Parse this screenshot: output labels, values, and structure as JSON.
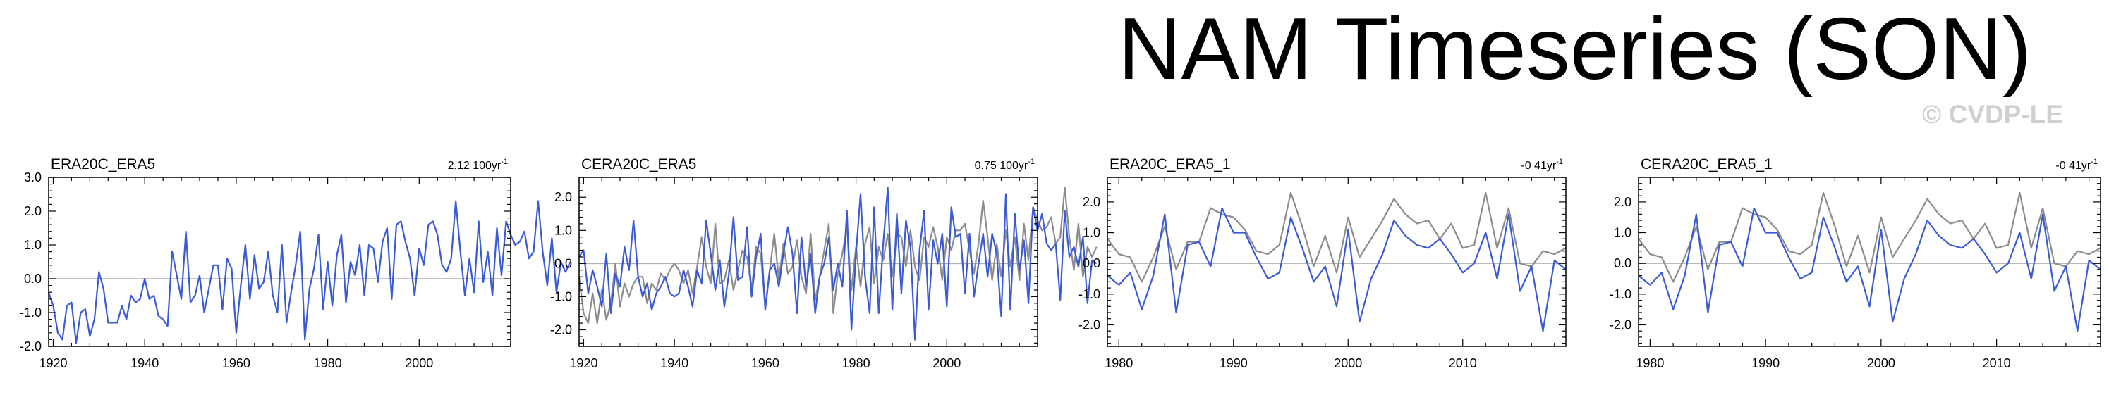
{
  "page": {
    "title": "NAM Timeseries (SON)",
    "watermark": "© CVDP-LE"
  },
  "colors": {
    "series_main": "#3b5bd6",
    "series_ref": "#8c8c8c",
    "zero_line": "#b0b0b0",
    "axis": "#000000"
  },
  "chart_data": [
    {
      "type": "line",
      "title": "ERA20C_ERA5",
      "trend_label": "2.12 100yr",
      "trend_sup": "-1",
      "xlim": [
        1919,
        2020
      ],
      "ylim": [
        -2.0,
        3.0
      ],
      "xticks": [
        1920,
        1940,
        1960,
        1980,
        2000
      ],
      "yticks": [
        -2.0,
        -1.0,
        0.0,
        1.0,
        2.0,
        3.0
      ],
      "ytick_labels": [
        "-2.0",
        "-1.0",
        "0.0",
        "1.0",
        "2.0",
        "3.0"
      ],
      "series": [
        {
          "name": "ERA20C_ERA5",
          "color": "#3b5bd6",
          "x_start": 1919,
          "values": [
            -0.4,
            -0.8,
            -1.6,
            -1.8,
            -0.8,
            -0.7,
            -1.9,
            -1.0,
            -0.9,
            -1.7,
            -1.2,
            0.2,
            -0.3,
            -1.3,
            -1.3,
            -1.3,
            -0.8,
            -1.2,
            -0.5,
            -0.7,
            -0.6,
            0.0,
            -0.6,
            -0.5,
            -1.1,
            -1.2,
            -1.4,
            0.8,
            0.1,
            -0.6,
            1.4,
            -0.7,
            -0.5,
            0.1,
            -1.0,
            -0.3,
            0.4,
            0.4,
            -0.9,
            0.6,
            0.3,
            -1.6,
            -0.2,
            1.0,
            -0.6,
            0.7,
            -0.3,
            -0.1,
            0.8,
            -0.5,
            -1.0,
            1.0,
            -1.3,
            -0.4,
            0.4,
            1.4,
            -1.8,
            -0.3,
            0.3,
            1.3,
            -0.9,
            0.5,
            -0.8,
            0.7,
            1.3,
            -0.7,
            0.5,
            0.1,
            1.0,
            -0.5,
            1.0,
            0.9,
            -0.1,
            1.1,
            1.5,
            -0.6,
            1.6,
            1.7,
            1.1,
            0.6,
            -0.5,
            0.9,
            0.4,
            1.6,
            1.7,
            1.3,
            0.4,
            0.2,
            0.6,
            2.3,
            0.8,
            -0.5,
            0.6,
            -0.4,
            1.7,
            -0.1,
            0.8,
            -0.5,
            1.5,
            0.1,
            1.7,
            1.3,
            1.0,
            1.1,
            1.4,
            0.6,
            0.8,
            2.3,
            0.8,
            -0.2,
            1.2,
            -0.4,
            0.5,
            0.2,
            0.5
          ]
        }
      ]
    },
    {
      "type": "line",
      "title": "CERA20C_ERA5",
      "trend_label": "0.75 100yr",
      "trend_sup": "-1",
      "xlim": [
        1919,
        2020
      ],
      "ylim": [
        -2.5,
        2.6
      ],
      "xticks": [
        1920,
        1940,
        1960,
        1980,
        2000
      ],
      "yticks": [
        -2.0,
        -1.0,
        0.0,
        1.0,
        2.0
      ],
      "ytick_labels": [
        "-2.0",
        "-1.0",
        "0.0",
        "1.0",
        "2.0"
      ],
      "series": [
        {
          "name": "ERA20C_ERA5",
          "color": "#8c8c8c",
          "x_start": 1919,
          "values": [
            -0.4,
            -1.5,
            -1.8,
            -0.9,
            -1.8,
            -0.8,
            -1.7,
            -1.2,
            0.0,
            -1.3,
            -0.6,
            -1.0,
            -0.6,
            -0.4,
            -0.4,
            -1.2,
            -0.6,
            -0.8,
            -0.3,
            -0.5,
            -0.2,
            0.0,
            -0.2,
            -0.6,
            -0.2,
            -0.9,
            -0.1,
            0.8,
            -0.1,
            -0.6,
            1.2,
            -0.6,
            -0.5,
            0.1,
            -0.8,
            -0.2,
            0.4,
            0.2,
            -0.8,
            0.5,
            0.3,
            -1.3,
            -0.2,
            0.9,
            -0.5,
            0.6,
            -0.3,
            -0.1,
            0.7,
            -0.4,
            -0.9,
            0.9,
            -1.1,
            -0.4,
            0.4,
            1.2,
            -1.5,
            -0.3,
            0.3,
            1.1,
            -0.8,
            0.5,
            -0.7,
            0.6,
            1.1,
            -0.6,
            0.5,
            0.1,
            0.9,
            -0.4,
            0.9,
            0.8,
            -0.1,
            1.0,
            -0.1,
            -0.5,
            0.8,
            0.5,
            1.1,
            0.5,
            -0.5,
            0.8,
            0.4,
            1.0,
            1.0,
            1.2,
            0.4,
            -0.3,
            0.6,
            1.9,
            0.8,
            -0.5,
            0.6,
            -0.4,
            1.0,
            -0.1,
            0.8,
            -0.5,
            1.2,
            0.1,
            1.7,
            1.3,
            1.0,
            1.1,
            1.4,
            0.6,
            0.8,
            2.3,
            0.8,
            -0.2,
            1.2,
            -0.4,
            0.5,
            0.2,
            0.5
          ]
        },
        {
          "name": "CERA20C_ERA5",
          "color": "#3b5bd6",
          "x_start": 1919,
          "values": [
            0.2,
            0.4,
            -0.9,
            -0.2,
            -0.7,
            -1.3,
            0.3,
            -1.5,
            -0.3,
            -0.7,
            0.5,
            -0.2,
            1.3,
            -0.4,
            -1.0,
            -0.6,
            -1.4,
            -0.9,
            -0.7,
            -0.4,
            -0.9,
            -1.0,
            -0.9,
            -0.2,
            -0.7,
            -1.3,
            -0.2,
            -0.6,
            1.3,
            0.3,
            -0.8,
            0.1,
            -1.3,
            -0.3,
            1.4,
            -0.5,
            -0.4,
            1.1,
            -1.0,
            0.2,
            0.9,
            -1.4,
            -0.2,
            0.0,
            -0.7,
            0.3,
            1.1,
            0.3,
            -1.5,
            0.8,
            -0.7,
            0.3,
            -1.5,
            -0.4,
            0.0,
            0.8,
            -0.8,
            0.0,
            -0.7,
            1.6,
            -2.0,
            0.3,
            2.1,
            -0.4,
            -1.5,
            1.7,
            -1.5,
            0.6,
            2.3,
            -1.4,
            1.5,
            -0.9,
            1.3,
            0.5,
            -2.3,
            0.4,
            1.6,
            -1.4,
            0.7,
            0.0,
            0.9,
            -1.3,
            1.7,
            0.8,
            0.9,
            -0.9,
            0.9,
            -1.0,
            0.0,
            0.9,
            -0.4,
            0.9,
            0.3,
            -1.6,
            2.1,
            -1.4,
            1.5,
            -0.2,
            0.7,
            -1.2,
            1.7,
            1.0,
            1.5,
            0.6,
            0.4,
            0.6,
            -1.1,
            1.6,
            0.2,
            0.5,
            -0.1,
            0.8,
            -1.2,
            0.1,
            0.0
          ]
        }
      ]
    },
    {
      "type": "line",
      "title": "ERA20C_ERA5_1",
      "trend_label": "-0 41yr",
      "trend_sup": "-1",
      "xlim": [
        1979,
        2019
      ],
      "ylim": [
        -2.7,
        2.8
      ],
      "xticks": [
        1980,
        1990,
        2000,
        2010
      ],
      "yticks": [
        -2.0,
        -1.0,
        0.0,
        1.0,
        2.0
      ],
      "ytick_labels": [
        "-2.0",
        "-1.0",
        "0.0",
        "1.0",
        "2.0"
      ],
      "series": [
        {
          "name": "ERA20C_ERA5",
          "color": "#8c8c8c",
          "x_start": 1979,
          "values": [
            0.8,
            0.3,
            0.2,
            -0.6,
            0.2,
            1.2,
            -0.2,
            0.7,
            0.7,
            1.8,
            1.6,
            1.5,
            1.1,
            0.4,
            0.3,
            0.6,
            2.3,
            1.2,
            -0.1,
            0.9,
            -0.3,
            1.5,
            0.2,
            0.8,
            1.4,
            2.1,
            1.6,
            1.3,
            1.4,
            0.8,
            1.3,
            0.5,
            0.6,
            2.3,
            0.5,
            1.8,
            0.0,
            -0.1,
            0.4,
            0.3,
            0.5
          ]
        },
        {
          "name": "ERA20C_ERA5_1",
          "color": "#3b5bd6",
          "x_start": 1979,
          "values": [
            -0.4,
            -0.7,
            -0.3,
            -1.5,
            -0.4,
            1.6,
            -1.6,
            0.6,
            0.7,
            -0.1,
            1.8,
            1.0,
            1.0,
            0.2,
            -0.5,
            -0.3,
            1.5,
            0.5,
            -0.6,
            -0.1,
            -1.4,
            1.1,
            -1.9,
            -0.5,
            0.3,
            1.4,
            0.9,
            0.6,
            0.5,
            0.8,
            0.3,
            -0.3,
            0.0,
            1.0,
            -0.5,
            1.6,
            -0.9,
            -0.1,
            -2.2,
            0.1,
            -0.2
          ]
        }
      ]
    },
    {
      "type": "line",
      "title": "CERA20C_ERA5_1",
      "trend_label": "-0 41yr",
      "trend_sup": "-1",
      "xlim": [
        1979,
        2019
      ],
      "ylim": [
        -2.7,
        2.8
      ],
      "xticks": [
        1980,
        1990,
        2000,
        2010
      ],
      "yticks": [
        -2.0,
        -1.0,
        0.0,
        1.0,
        2.0
      ],
      "ytick_labels": [
        "-2.0",
        "-1.0",
        "0.0",
        "1.0",
        "2.0"
      ],
      "series": [
        {
          "name": "ERA20C_ERA5",
          "color": "#8c8c8c",
          "x_start": 1979,
          "values": [
            0.8,
            0.3,
            0.2,
            -0.6,
            0.2,
            1.2,
            -0.2,
            0.7,
            0.7,
            1.8,
            1.6,
            1.5,
            1.1,
            0.4,
            0.3,
            0.6,
            2.3,
            1.2,
            -0.1,
            0.9,
            -0.3,
            1.5,
            0.2,
            0.8,
            1.4,
            2.1,
            1.6,
            1.3,
            1.4,
            0.8,
            1.3,
            0.5,
            0.6,
            2.3,
            0.5,
            1.8,
            0.0,
            -0.1,
            0.4,
            0.3,
            0.5
          ]
        },
        {
          "name": "CERA20C_ERA5_1",
          "color": "#3b5bd6",
          "x_start": 1979,
          "values": [
            -0.4,
            -0.7,
            -0.3,
            -1.5,
            -0.4,
            1.6,
            -1.6,
            0.6,
            0.7,
            -0.1,
            1.8,
            1.0,
            1.0,
            0.2,
            -0.5,
            -0.3,
            1.5,
            0.5,
            -0.6,
            -0.1,
            -1.4,
            1.1,
            -1.9,
            -0.5,
            0.3,
            1.4,
            0.9,
            0.6,
            0.5,
            0.8,
            0.3,
            -0.3,
            0.0,
            1.0,
            -0.5,
            1.6,
            -0.9,
            -0.1,
            -2.2,
            0.1,
            -0.2
          ]
        }
      ]
    }
  ]
}
